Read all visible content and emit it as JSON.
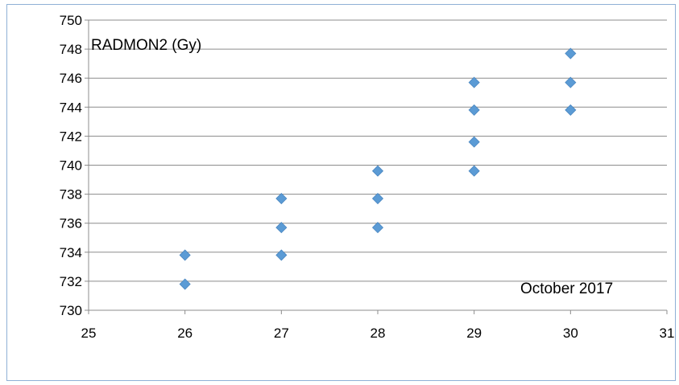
{
  "chart_data": {
    "type": "scatter",
    "title": "",
    "xlabel": "",
    "ylabel": "",
    "xlim": [
      25,
      31
    ],
    "ylim": [
      730,
      750
    ],
    "x_ticks": [
      25,
      26,
      27,
      28,
      29,
      30,
      31
    ],
    "y_ticks": [
      730,
      732,
      734,
      736,
      738,
      740,
      742,
      744,
      746,
      748,
      750
    ],
    "grid": "horizontal",
    "series": [
      {
        "color": "#5B9BD5",
        "marker": "diamond",
        "points": [
          {
            "x": 26,
            "y": 731.8
          },
          {
            "x": 26,
            "y": 733.8
          },
          {
            "x": 27,
            "y": 733.8
          },
          {
            "x": 27,
            "y": 735.7
          },
          {
            "x": 27,
            "y": 737.7
          },
          {
            "x": 28,
            "y": 735.7
          },
          {
            "x": 28,
            "y": 737.7
          },
          {
            "x": 28,
            "y": 739.6
          },
          {
            "x": 29,
            "y": 739.6
          },
          {
            "x": 29,
            "y": 741.6
          },
          {
            "x": 29,
            "y": 743.8
          },
          {
            "x": 29,
            "y": 745.7
          },
          {
            "x": 30,
            "y": 743.8
          },
          {
            "x": 30,
            "y": 745.7
          },
          {
            "x": 30,
            "y": 747.7
          }
        ]
      }
    ],
    "annotations": {
      "quantity": "RADMON2 (Gy)",
      "period": "October 2017"
    }
  }
}
